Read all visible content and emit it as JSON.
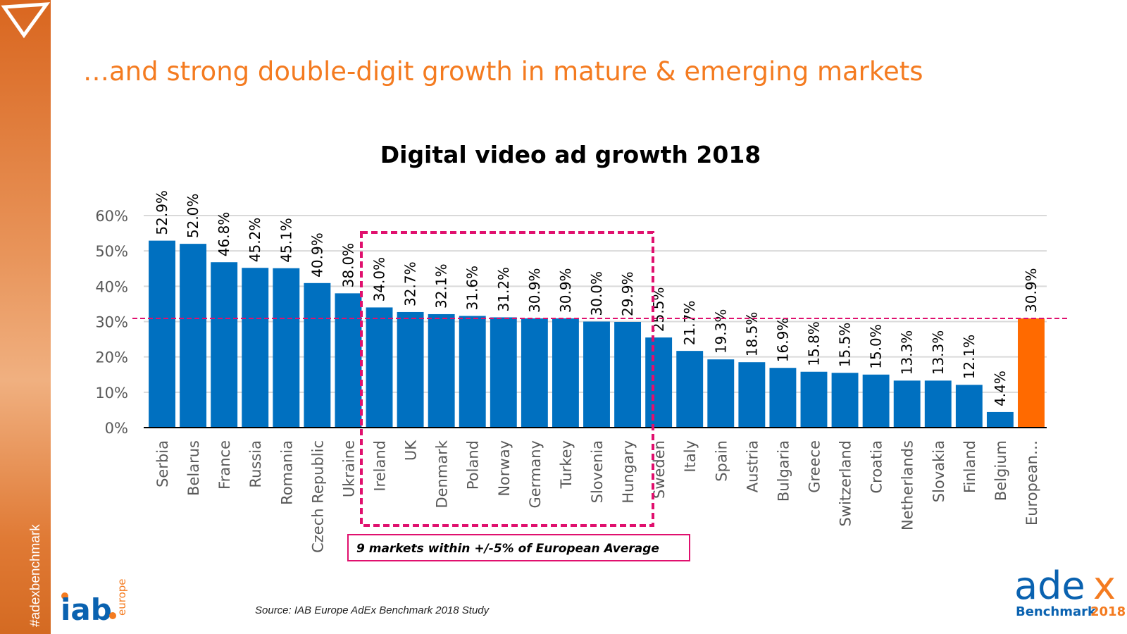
{
  "headline": "…and strong double-digit growth in mature & emerging markets",
  "sidebar": {
    "hashtag": "#adexbenchmark"
  },
  "source": "Source: IAB Europe AdEx Benchmark 2018 Study",
  "logos": {
    "iab": "iab europe",
    "adex": "adex Benchmark 2018"
  },
  "annotation": "9 markets within +/-5% of European Average",
  "colors": {
    "bar": "#0070c0",
    "highlight": "#ff6a00",
    "accent": "#f47b20",
    "dashed": "#e0106e"
  },
  "chart_data": {
    "type": "bar",
    "title": "Digital video ad growth 2018",
    "categories": [
      "Serbia",
      "Belarus",
      "France",
      "Russia",
      "Romania",
      "Czech Republic",
      "Ukraine",
      "Ireland",
      "UK",
      "Denmark",
      "Poland",
      "Norway",
      "Germany",
      "Turkey",
      "Slovenia",
      "Hungary",
      "Sweden",
      "Italy",
      "Spain",
      "Austria",
      "Bulgaria",
      "Greece",
      "Switzerland",
      "Croatia",
      "Netherlands",
      "Slovakia",
      "Finland",
      "Belgium",
      "European…"
    ],
    "values": [
      52.9,
      52.0,
      46.8,
      45.2,
      45.1,
      40.9,
      38.0,
      34.0,
      32.7,
      32.1,
      31.6,
      31.2,
      30.9,
      30.9,
      30.0,
      29.9,
      25.5,
      21.7,
      19.3,
      18.5,
      16.9,
      15.8,
      15.5,
      15.0,
      13.3,
      13.3,
      12.1,
      4.4,
      30.9
    ],
    "labels": [
      "52.9%",
      "52.0%",
      "46.8%",
      "45.2%",
      "45.1%",
      "40.9%",
      "38.0%",
      "34.0%",
      "32.7%",
      "32.1%",
      "31.6%",
      "31.2%",
      "30.9%",
      "30.9%",
      "30.0%",
      "29.9%",
      "25.5%",
      "21.7%",
      "19.3%",
      "18.5%",
      "16.9%",
      "15.8%",
      "15.5%",
      "15.0%",
      "13.3%",
      "13.3%",
      "12.1%",
      "4.4%",
      "30.9%"
    ],
    "highlight_index": 28,
    "yticks": [
      "0%",
      "10%",
      "20%",
      "30%",
      "40%",
      "50%",
      "60%"
    ],
    "ylim": [
      0,
      60
    ],
    "grid": true,
    "reference_line": 30.9
  }
}
